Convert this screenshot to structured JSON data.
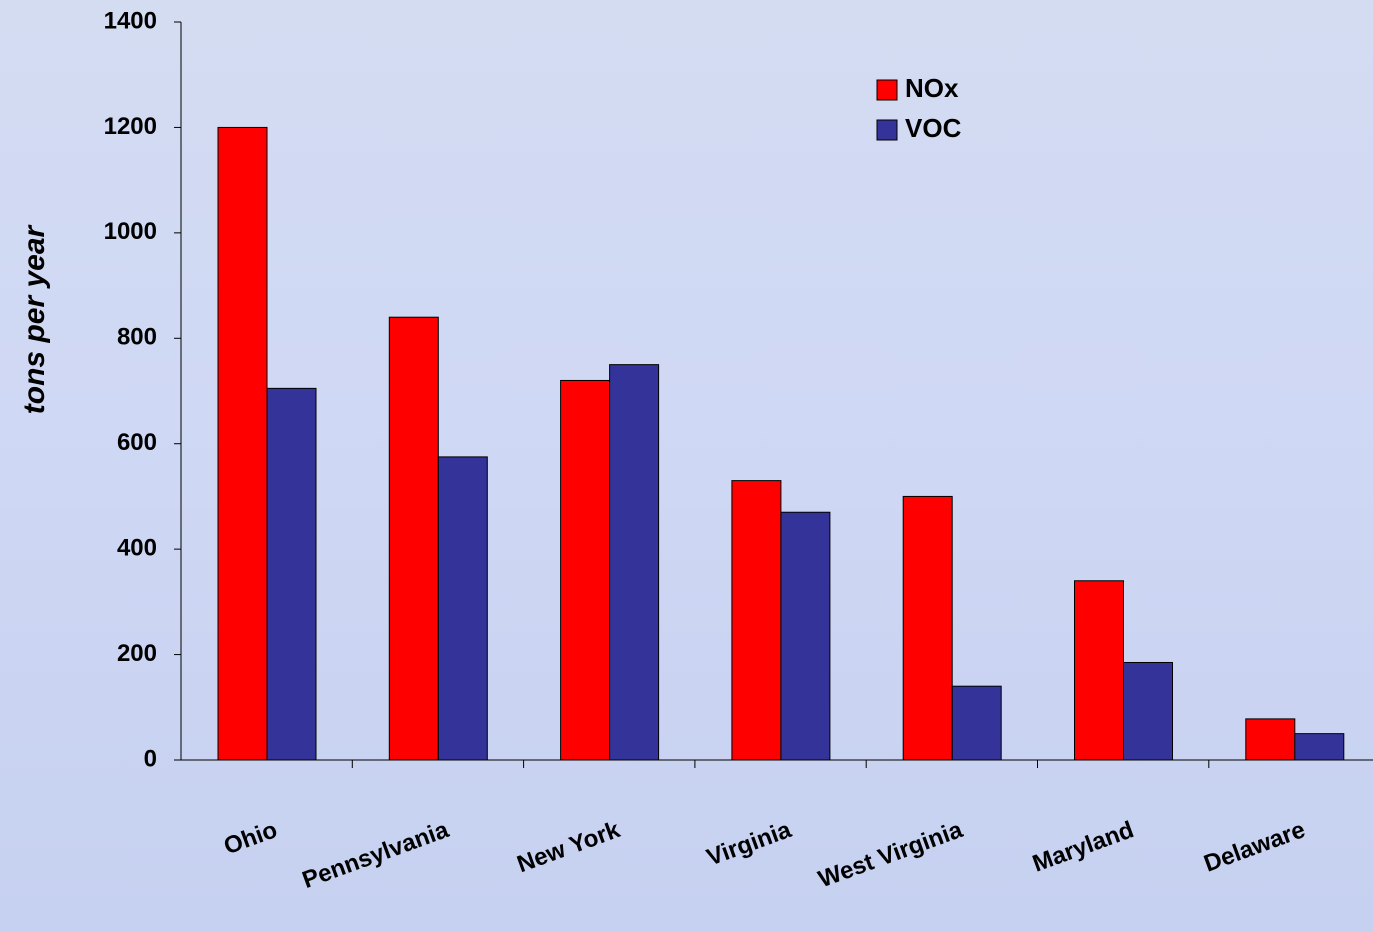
{
  "chart_data": {
    "type": "bar",
    "y_label": "tons per year",
    "categories": [
      "Ohio",
      "Pennsylvania",
      "New York",
      "Virginia",
      "West Virginia",
      "Maryland",
      "Delaware"
    ],
    "series": [
      {
        "name": "NOx",
        "color": "#ff0000",
        "values": [
          1200,
          840,
          720,
          530,
          500,
          340,
          78
        ]
      },
      {
        "name": "VOC",
        "color": "#333399",
        "values": [
          705,
          575,
          750,
          470,
          140,
          185,
          50
        ]
      }
    ],
    "ylim": [
      0,
      1400
    ],
    "yticks": [
      0,
      200,
      400,
      600,
      800,
      1000,
      1200,
      1400
    ]
  }
}
